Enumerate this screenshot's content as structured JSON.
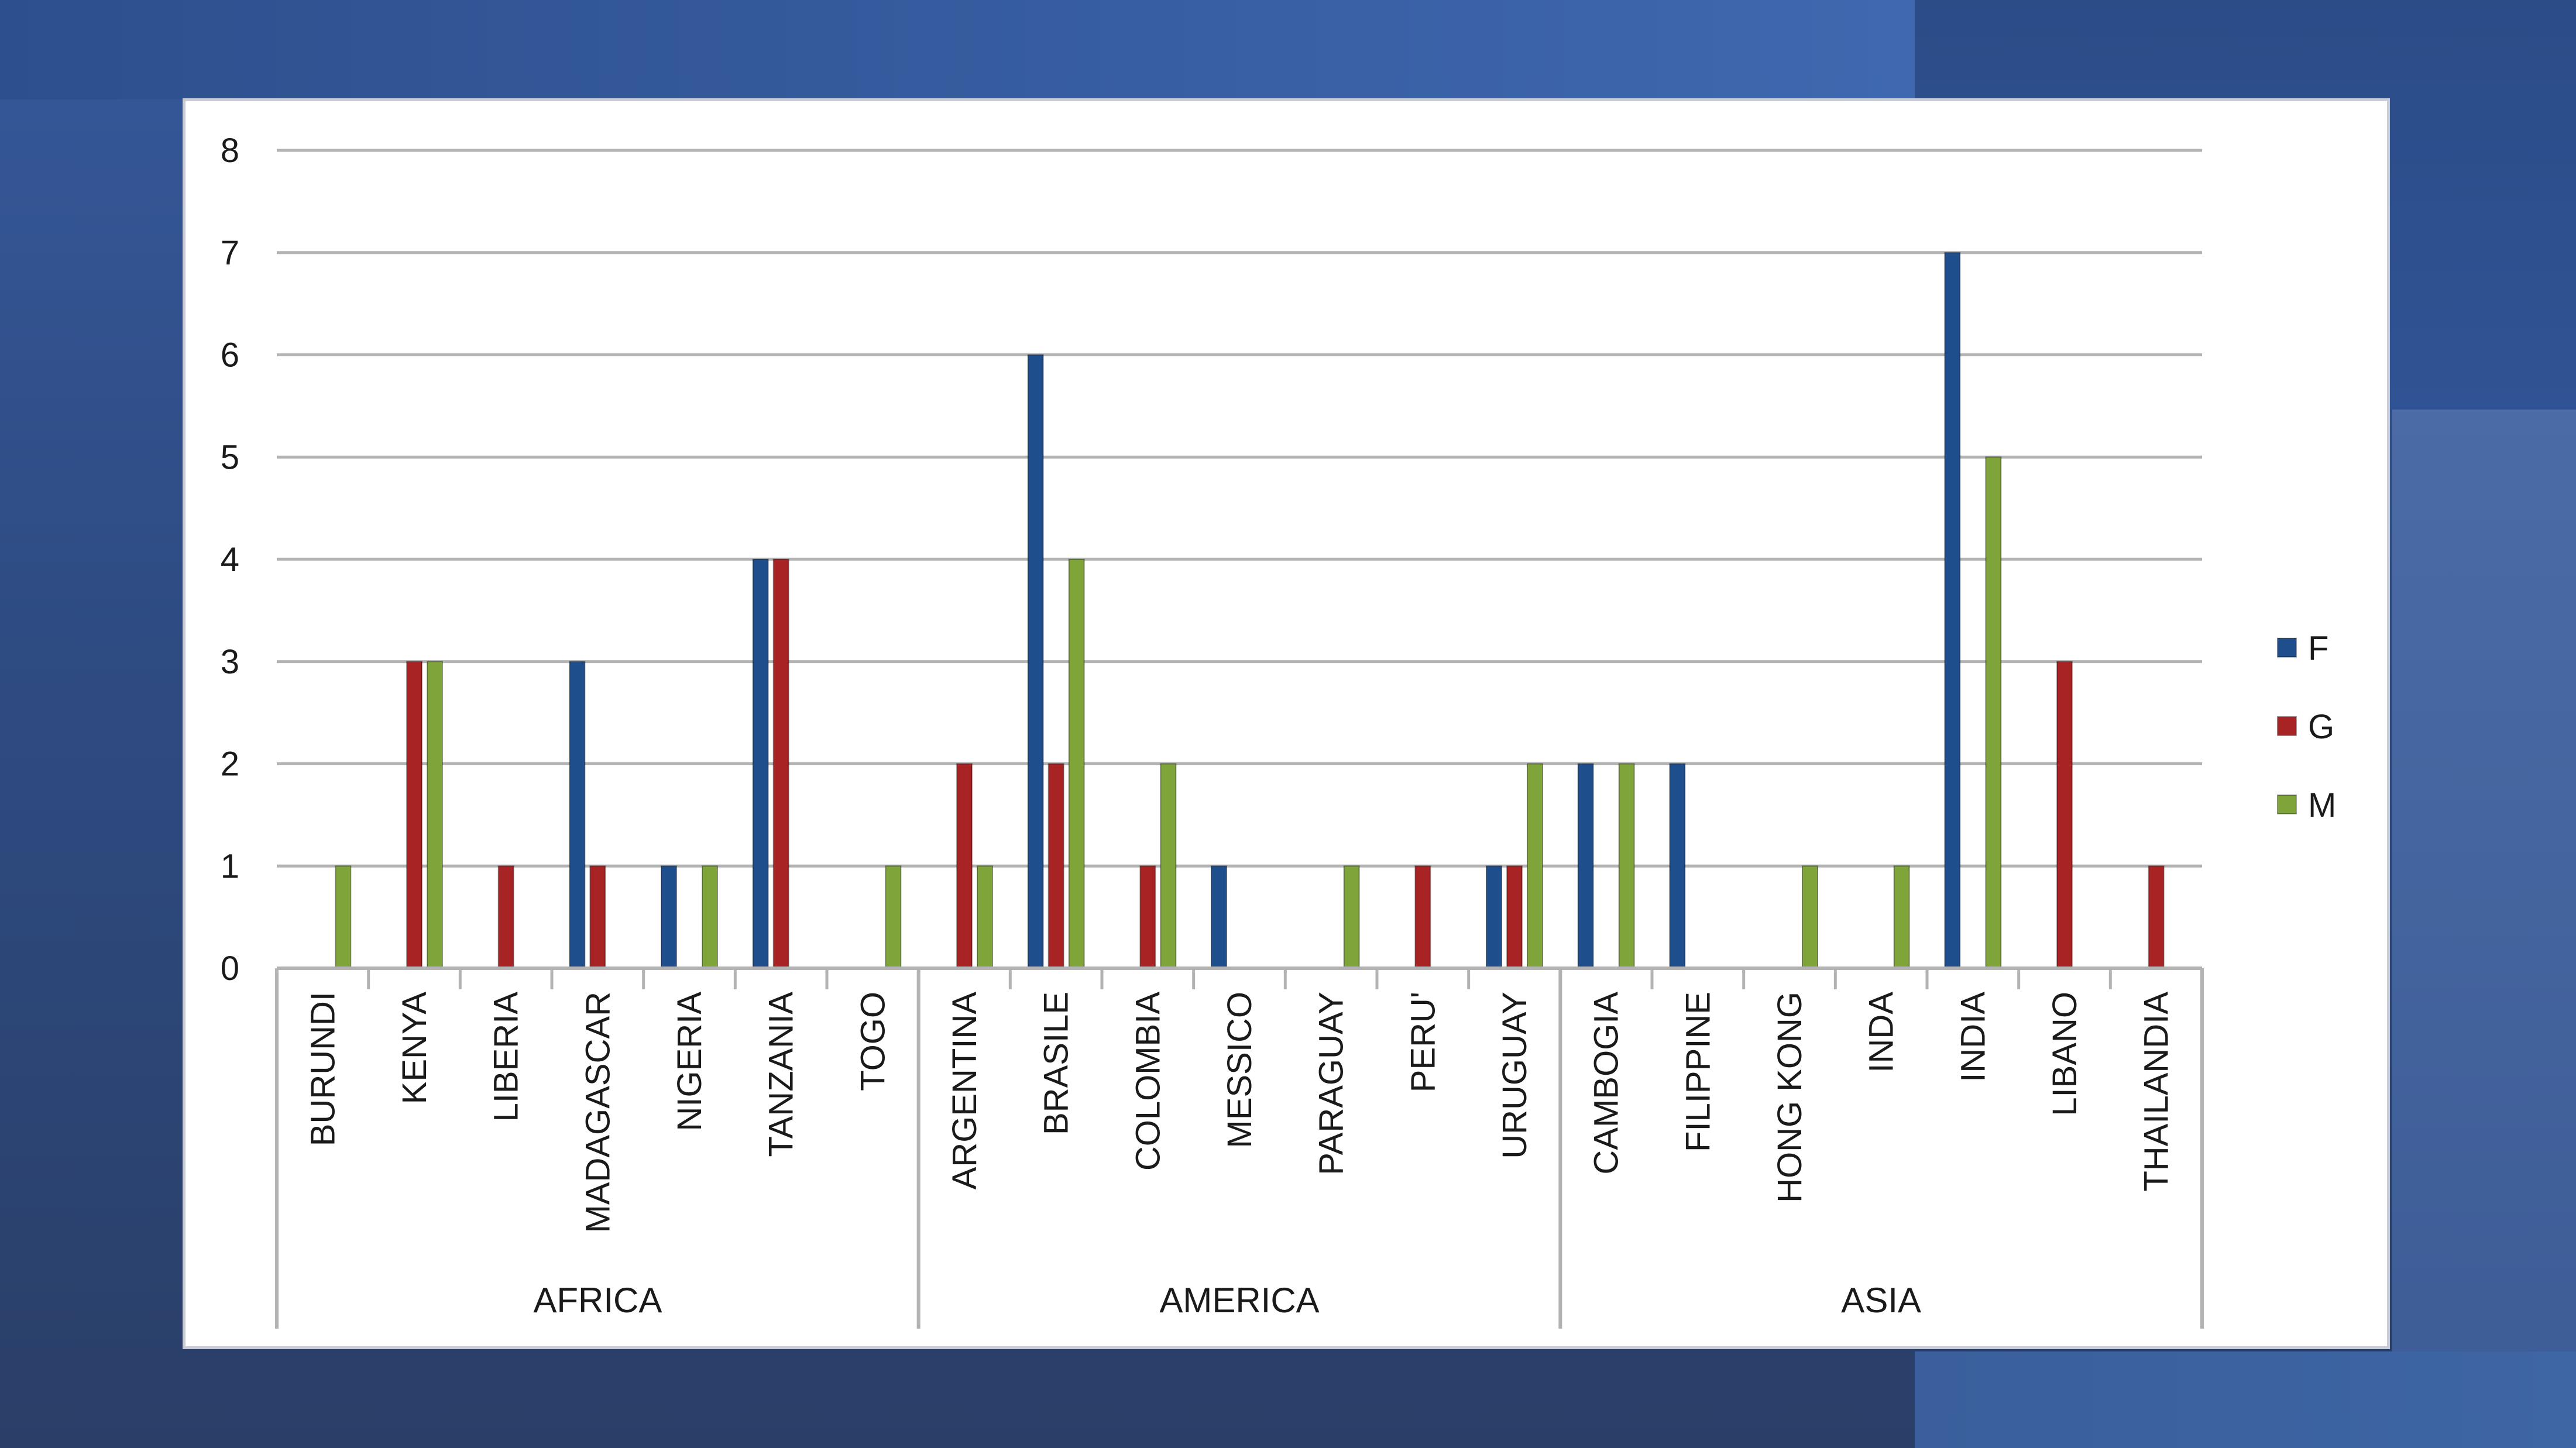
{
  "chart_data": {
    "type": "bar",
    "title": "",
    "xlabel": "",
    "ylabel": "",
    "ylim": [
      0,
      8
    ],
    "yticks": [
      "0",
      "1",
      "2",
      "3",
      "4",
      "5",
      "6",
      "7",
      "8"
    ],
    "grid": true,
    "legend_position": "right",
    "groups": [
      {
        "label": "AFRICA",
        "categories": [
          "BURUNDI",
          "KENYA",
          "LIBERIA",
          "MADAGASCAR",
          "NIGERIA",
          "TANZANIA",
          "TOGO"
        ]
      },
      {
        "label": "AMERICA",
        "categories": [
          "ARGENTINA",
          "BRASILE",
          "COLOMBIA",
          "MESSICO",
          "PARAGUAY",
          "PERU'",
          "URUGUAY"
        ]
      },
      {
        "label": "ASIA",
        "categories": [
          "CAMBOGIA",
          "FILIPPINE",
          "HONG KONG",
          "INDA",
          "INDIA",
          "LIBANO",
          "THAILANDIA"
        ]
      }
    ],
    "series": [
      {
        "name": "F",
        "color": "#1f4e8c",
        "values": [
          0,
          0,
          0,
          3,
          1,
          4,
          0,
          0,
          6,
          0,
          1,
          0,
          0,
          1,
          2,
          2,
          0,
          0,
          7,
          0,
          0
        ]
      },
      {
        "name": "G",
        "color": "#a82424",
        "values": [
          0,
          3,
          1,
          1,
          0,
          4,
          0,
          2,
          2,
          1,
          0,
          0,
          1,
          1,
          0,
          0,
          0,
          0,
          0,
          3,
          1
        ]
      },
      {
        "name": "M",
        "color": "#7fa53a",
        "values": [
          1,
          3,
          0,
          0,
          1,
          0,
          1,
          1,
          4,
          2,
          0,
          1,
          0,
          2,
          2,
          0,
          1,
          1,
          5,
          0,
          0
        ]
      }
    ]
  }
}
